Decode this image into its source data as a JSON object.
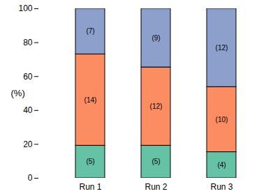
{
  "chart_data": {
    "type": "bar",
    "stacked": true,
    "y_label": "(%)",
    "categories": [
      "Run 1",
      "Run 2",
      "Run 3"
    ],
    "series": [
      {
        "color": "#66c2a5",
        "values": [
          19.2,
          19.2,
          15.4
        ],
        "labels": [
          "(5)",
          "(5)",
          "(4)"
        ]
      },
      {
        "color": "#fc8d62",
        "values": [
          53.9,
          46.2,
          38.4
        ],
        "labels": [
          "(14)",
          "(12)",
          "(10)"
        ]
      },
      {
        "color": "#8da0cb",
        "values": [
          26.9,
          34.6,
          46.2
        ],
        "labels": [
          "(7)",
          "(9)",
          "(12)"
        ]
      }
    ],
    "ylim": [
      0,
      100
    ],
    "yticks": [
      0,
      20,
      40,
      60,
      80,
      100
    ],
    "grid": false
  }
}
